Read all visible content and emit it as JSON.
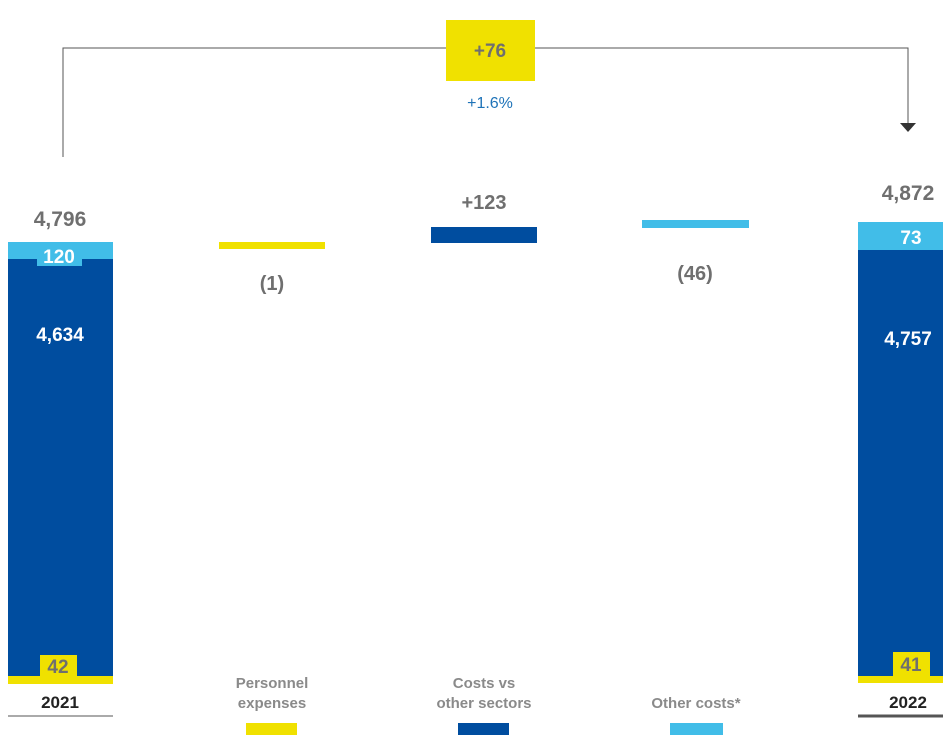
{
  "colors": {
    "dark_blue": "#004d9f",
    "light_blue": "#41bde8",
    "yellow": "#f0e100",
    "gray_text": "#6f6f6f",
    "black_text": "#222222",
    "bracket": "#555555",
    "pct_text": "#1e73b8"
  },
  "chart_data": {
    "type": "bar",
    "subtype": "waterfall",
    "total_change": {
      "label": "+76",
      "percent": "+1.6%"
    },
    "totals": [
      {
        "year": "2021",
        "total_label": "4,796",
        "segments": [
          {
            "key": "yellow",
            "value": 42,
            "label": "42"
          },
          {
            "key": "dark_blue",
            "value": 4634,
            "label": "4,634"
          },
          {
            "key": "light_blue",
            "value": 120,
            "label": "120"
          }
        ]
      },
      {
        "year": "2022",
        "total_label": "4,872",
        "segments": [
          {
            "key": "yellow",
            "value": 41,
            "label": "41"
          },
          {
            "key": "dark_blue",
            "value": 4757,
            "label": "4,757"
          },
          {
            "key": "light_blue",
            "value": 73,
            "label": "73"
          }
        ]
      }
    ],
    "changes": [
      {
        "category": "Personnel expenses",
        "category_lines": [
          "Personnel",
          "expenses"
        ],
        "value": -1,
        "label": "(1)",
        "color_key": "yellow"
      },
      {
        "category": "Costs vs other sectors",
        "category_lines": [
          "Costs vs",
          "other sectors"
        ],
        "value": 123,
        "label": "+123",
        "color_key": "dark_blue"
      },
      {
        "category": "Other costs*",
        "category_lines": [
          "Other costs*"
        ],
        "value": -46,
        "label": "(46)",
        "color_key": "light_blue"
      }
    ]
  }
}
